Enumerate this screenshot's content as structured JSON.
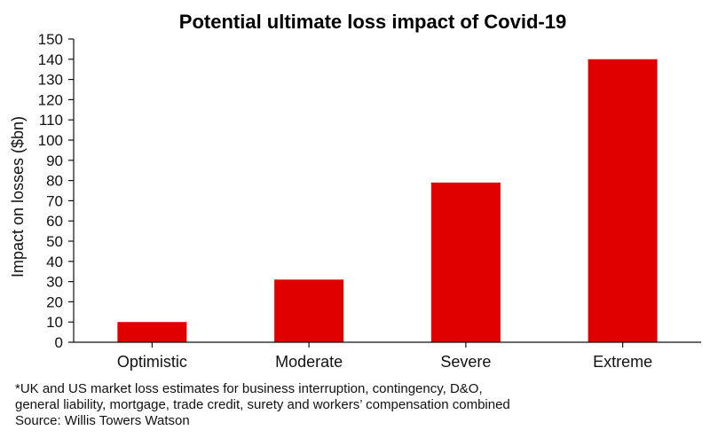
{
  "chart_data": {
    "type": "bar",
    "title": "Potential ultimate loss impact of Covid-19",
    "xlabel": "",
    "ylabel": "Impact on losses ($bn)",
    "categories": [
      "Optimistic",
      "Moderate",
      "Severe",
      "Extreme"
    ],
    "values": [
      10,
      31,
      79,
      140
    ],
    "ylim": [
      0,
      150
    ],
    "yticks": [
      0,
      10,
      20,
      30,
      40,
      50,
      60,
      70,
      80,
      90,
      100,
      110,
      120,
      130,
      140,
      150
    ],
    "grid": false,
    "legend": "none",
    "bar_color": "#e00000"
  },
  "footnote": {
    "line1": "*UK and US market loss estimates for business interruption, contingency, D&O,",
    "line2": "general liability, mortgage, trade credit, surety and workers’ compensation combined",
    "source": "Source: Willis Towers Watson"
  }
}
